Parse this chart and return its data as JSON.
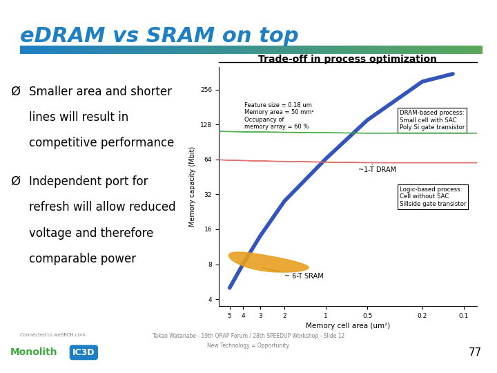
{
  "title": "eDRAM vs SRAM on top",
  "title_color": "#1F7FC4",
  "title_fontsize": 22,
  "bg_color": "#FFFFFF",
  "gradient_left": "#1F7FC4",
  "gradient_right": "#5BA85A",
  "bullet_points": [
    [
      "Smaller area and shorter",
      "lines will result in",
      "competitive performance"
    ],
    [
      "Independent port for",
      "refresh will allow reduced",
      "voltage and therefore",
      "comparable power"
    ]
  ],
  "bullet_fontsize": 12,
  "footer_left": "Connected to weSRCH.com",
  "footer_center": "Takao Watanabe - 19th ORAP Forum / 28th SPEEDUP Workshop - Slide 12",
  "footer_sub": "New Technology = Opportunity",
  "page_number": "77",
  "chart_title": "Trade-off in process optimization",
  "chart_xlabel": "Memory cell area (um²)",
  "chart_ylabel": "Memory capacity (Mbit)",
  "feature_text": "Feature size = 0.18 um\nMemory area = 50 mm²\nOccupancy of\nmemory array = 60 %",
  "label_dram": "~1-T DRAM",
  "label_sram": "~ 6-T SRAM",
  "box1": "DRAM-based process:\nSmall cell with SAC\nPoly Si gate transistor",
  "box2": "Logic-based process:\nCell without SAC\nSillside gate transistor",
  "line_color": "#3355BB",
  "sram_color": "#E8A020",
  "dram_color": "#44AA44",
  "pink_color": "#DD6666",
  "logo_green": "#3DAA3D",
  "logo_blue": "#1F7FC4"
}
